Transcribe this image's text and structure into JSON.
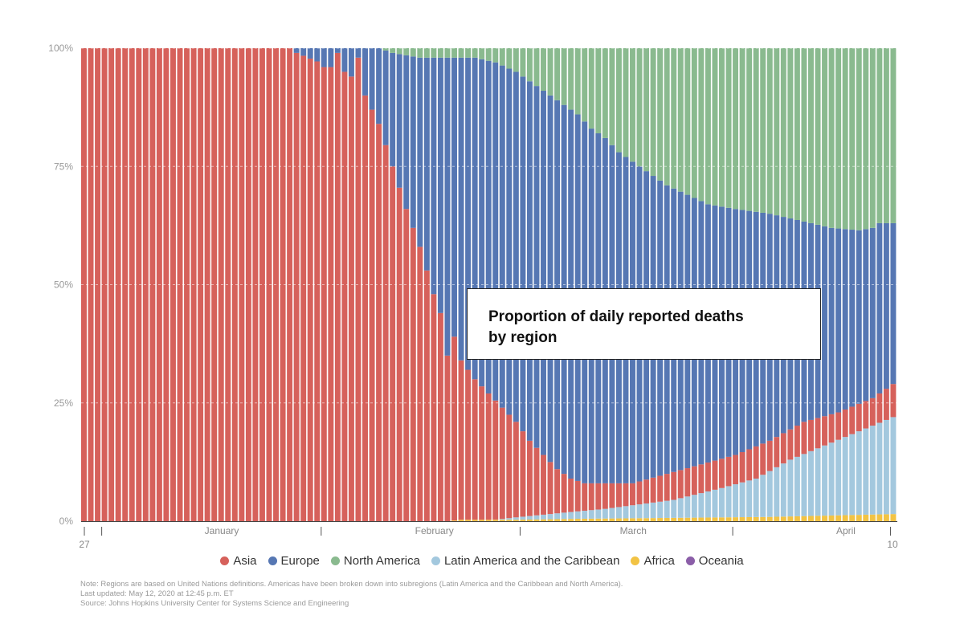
{
  "chart_data": {
    "type": "bar",
    "stacked": true,
    "normalized": true,
    "title": "Proportion of daily reported deaths by region",
    "ylim": [
      0,
      100
    ],
    "y_ticks": [
      "100%",
      "75%",
      "50%",
      "25%",
      "0%"
    ],
    "y_tick_values": [
      100,
      75,
      50,
      25,
      0
    ],
    "x_start_label": "27",
    "x_end_label": "10",
    "months": [
      {
        "label": "January",
        "day_index": 20
      },
      {
        "label": "February",
        "day_index": 51
      },
      {
        "label": "March",
        "day_index": 80
      },
      {
        "label": "April",
        "day_index": 111
      }
    ],
    "month_separators": [
      3,
      35,
      64,
      95,
      118
    ],
    "grid": "horizontal dashed",
    "legend_position": "bottom",
    "num_days": 119,
    "series_order_bottom_to_top": [
      "Africa",
      "Oceania",
      "Latin America and the Caribbean",
      "Asia",
      "Europe",
      "North America"
    ],
    "series": [
      {
        "name": "Asia",
        "color": "#d6615b"
      },
      {
        "name": "Europe",
        "color": "#5677b3"
      },
      {
        "name": "North America",
        "color": "#8aba8f"
      },
      {
        "name": "Latin America and the Caribbean",
        "color": "#a3c8de"
      },
      {
        "name": "Africa",
        "color": "#f2c344"
      },
      {
        "name": "Oceania",
        "color": "#8b5ea8"
      }
    ],
    "cumulative_boundaries_pct": {
      "africa_top": [
        [
          0,
          0
        ],
        [
          53,
          0
        ],
        [
          55,
          0.3
        ],
        [
          63,
          0.3
        ],
        [
          72,
          0.5
        ],
        [
          86,
          0.7
        ],
        [
          100,
          0.9
        ],
        [
          118,
          1.5
        ]
      ],
      "latam_top": [
        [
          0,
          0
        ],
        [
          58,
          0
        ],
        [
          63,
          0.8
        ],
        [
          70,
          1.8
        ],
        [
          76,
          2.6
        ],
        [
          86,
          4.5
        ],
        [
          93,
          7
        ],
        [
          98,
          9
        ],
        [
          103,
          13
        ],
        [
          108,
          16
        ],
        [
          113,
          19
        ],
        [
          118,
          22
        ]
      ],
      "asia_top": [
        [
          0,
          100
        ],
        [
          30,
          100
        ],
        [
          31,
          99
        ],
        [
          36,
          96
        ],
        [
          39,
          94
        ],
        [
          41,
          90
        ],
        [
          43,
          84
        ],
        [
          45,
          75
        ],
        [
          47,
          66
        ],
        [
          49,
          58
        ],
        [
          51,
          48
        ],
        [
          53,
          40
        ],
        [
          55,
          34
        ],
        [
          57,
          30
        ],
        [
          59,
          27
        ],
        [
          61,
          24
        ],
        [
          63,
          21
        ],
        [
          65,
          17
        ],
        [
          67,
          14
        ],
        [
          69,
          11
        ],
        [
          71,
          9
        ],
        [
          73,
          8
        ],
        [
          80,
          8
        ],
        [
          85,
          10
        ],
        [
          90,
          12
        ],
        [
          95,
          14
        ],
        [
          100,
          17
        ],
        [
          105,
          21
        ],
        [
          110,
          23
        ],
        [
          115,
          26
        ],
        [
          118,
          29
        ]
      ],
      "europe_top": [
        [
          0,
          100
        ],
        [
          30,
          100
        ],
        [
          43,
          100
        ],
        [
          45,
          99
        ],
        [
          49,
          98
        ],
        [
          51,
          98
        ],
        [
          55,
          98
        ],
        [
          57,
          98
        ],
        [
          60,
          97
        ],
        [
          63,
          95
        ],
        [
          66,
          92
        ],
        [
          68,
          90
        ],
        [
          70,
          88
        ],
        [
          72,
          86
        ],
        [
          74,
          83
        ],
        [
          76,
          81
        ],
        [
          78,
          78
        ],
        [
          80,
          76
        ],
        [
          82,
          74
        ],
        [
          85,
          71
        ],
        [
          88,
          69
        ],
        [
          91,
          67
        ],
        [
          95,
          66
        ],
        [
          100,
          65
        ],
        [
          103,
          64
        ],
        [
          106,
          63
        ],
        [
          109,
          62
        ],
        [
          113,
          61.5
        ],
        [
          115,
          62
        ],
        [
          116,
          63
        ],
        [
          118,
          63
        ]
      ],
      "asia_spikes": [
        [
          35,
          96
        ],
        [
          36,
          96
        ],
        [
          37,
          99
        ],
        [
          38,
          95
        ],
        [
          40,
          98
        ],
        [
          47,
          66
        ],
        [
          53,
          35
        ],
        [
          54,
          39
        ]
      ]
    }
  },
  "legend": [
    {
      "label": "Asia",
      "color": "#d6615b"
    },
    {
      "label": "Europe",
      "color": "#5677b3"
    },
    {
      "label": "North America",
      "color": "#8aba8f"
    },
    {
      "label": "Latin America and the Caribbean",
      "color": "#a3c8de"
    },
    {
      "label": "Africa",
      "color": "#f2c344"
    },
    {
      "label": "Oceania",
      "color": "#8b5ea8"
    }
  ],
  "title_box": {
    "line1": "Proportion of daily reported deaths",
    "line2": "by region"
  },
  "notes": {
    "note": "Note: Regions are based on United Nations definitions. Americas have been broken down into subregions (Latin America and the Caribbean and North America).",
    "updated": "Last updated: May 12, 2020 at 12:45 p.m. ET",
    "source": "Source: Johns Hopkins University Center for Systems Science and Engineering"
  }
}
